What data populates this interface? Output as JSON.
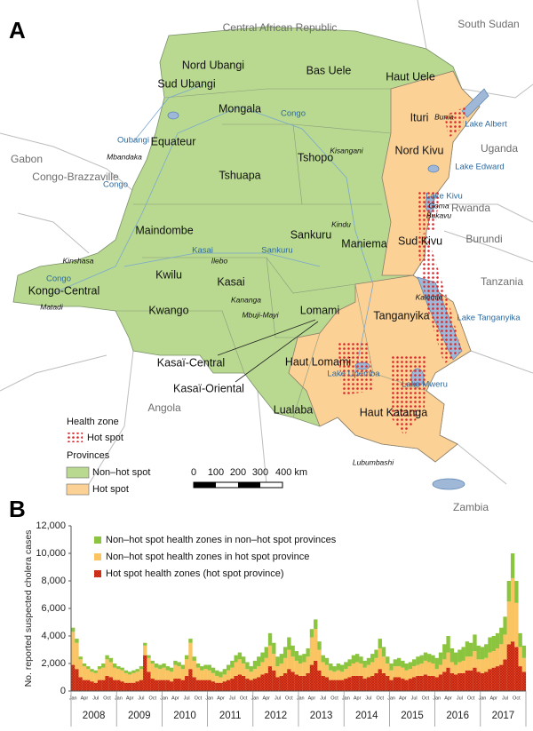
{
  "map": {
    "panel_label": "A",
    "countries": [
      "Central African Republic",
      "South Sudan",
      "Uganda",
      "Gabon",
      "Congo-Brazzaville",
      "Rwanda",
      "Burundi",
      "Tanzania",
      "Angola",
      "Zambia"
    ],
    "provinces": [
      "Nord Ubangi",
      "Bas Uele",
      "Haut Uele",
      "Sud Ubangi",
      "Mongala",
      "Ituri",
      "Equateur",
      "Tshopo",
      "Tshuapa",
      "Nord Kivu",
      "Maindombe",
      "Sankuru",
      "Maniema",
      "Sud Kivu",
      "Kwilu",
      "Kasai",
      "Kongo-Central",
      "Tanganyika",
      "Kwango",
      "Lomami",
      "Kasaï-Central",
      "Haut Lomami",
      "Kasaï-Oriental",
      "Lualaba",
      "Haut Katanga"
    ],
    "cities": [
      "Bunia",
      "Kisangani",
      "Mbandaka",
      "Goma",
      "Bukavu",
      "Kindu",
      "Kinshasa",
      "Ilebo",
      "Kananga",
      "Mbuji-Mayi",
      "Kalemie",
      "Matadi",
      "Lubumbashi"
    ],
    "water": [
      "Lake Albert",
      "Congo",
      "Oubangi",
      "Congo",
      "Lake Edward",
      "Lake Kivu",
      "Kasai",
      "Sankuru",
      "Congo",
      "Lake Tanganyika",
      "Lake Upemba",
      "Lake Mweru"
    ],
    "legend": {
      "health_zone_title": "Health zone",
      "health_zone_hot_spot": "Hot spot",
      "provinces_title": "Provinces",
      "non_hot_spot": "Non–hot spot",
      "hot_spot": "Hot spot"
    },
    "scale_labels": [
      "0",
      "100",
      "200",
      "300",
      "400 km"
    ]
  },
  "chart_data": {
    "type": "stacked_bar",
    "panel_label": "B",
    "y_label": "No. reported suspected cholera cases",
    "ylim": [
      0,
      12000
    ],
    "yticks": [
      0,
      {
        "value": 2000,
        "label": "2,000"
      },
      {
        "value": 4000,
        "label": "4,000"
      },
      {
        "value": 6000,
        "label": "6,000"
      },
      {
        "value": 8000,
        "label": "8,000"
      },
      {
        "value": 10000,
        "label": "10,000"
      },
      {
        "value": 12000,
        "label": "12,000"
      }
    ],
    "years": [
      "2008",
      "2009",
      "2010",
      "2011",
      "2012",
      "2013",
      "2014",
      "2015",
      "2016",
      "2017"
    ],
    "categories": [
      "Jan",
      null,
      null,
      "Apr",
      null,
      null,
      "Jul",
      null,
      null,
      "Oct",
      null,
      null,
      "Jan",
      null,
      null,
      "Apr",
      null,
      null,
      "Jul",
      null,
      null,
      "Oct",
      null,
      null,
      "Jan",
      null,
      null,
      "Apr",
      null,
      null,
      "Jul",
      null,
      null,
      "Oct",
      null,
      null,
      "Jan",
      null,
      null,
      "Apr",
      null,
      null,
      "Jul",
      null,
      null,
      "Oct",
      null,
      null,
      "Jan",
      null,
      null,
      "Apr",
      null,
      null,
      "Jul",
      null,
      null,
      "Oct",
      null,
      null,
      "Jan",
      null,
      null,
      "Apr",
      null,
      null,
      "Jul",
      null,
      null,
      "Oct",
      null,
      null,
      "Jan",
      null,
      null,
      "Apr",
      null,
      null,
      "Jul",
      null,
      null,
      "Oct",
      null,
      null,
      "Jan",
      null,
      null,
      "Apr",
      null,
      null,
      "Jul",
      null,
      null,
      "Oct",
      null,
      null,
      "Jan",
      null,
      null,
      "Apr",
      null,
      null,
      "Jul",
      null,
      null,
      "Oct",
      null,
      null,
      "Jan",
      null,
      null,
      "Apr",
      null,
      null,
      "Jul",
      null,
      null,
      "Oct",
      null,
      null
    ],
    "series": [
      {
        "name": "Hot spot health zones (hot spot province)",
        "color": "#e4421b",
        "hatch": true,
        "values": [
          1900,
          1600,
          1000,
          800,
          800,
          700,
          600,
          800,
          800,
          1100,
          1000,
          800,
          800,
          700,
          600,
          600,
          600,
          700,
          800,
          2600,
          1400,
          900,
          800,
          800,
          800,
          800,
          700,
          900,
          900,
          800,
          1100,
          1600,
          1000,
          800,
          800,
          800,
          800,
          700,
          600,
          600,
          700,
          800,
          900,
          1100,
          1200,
          1100,
          900,
          800,
          900,
          1000,
          1200,
          1300,
          1800,
          1500,
          1000,
          1100,
          1300,
          1600,
          1400,
          1200,
          1100,
          1100,
          1300,
          1900,
          2200,
          1500,
          1100,
          1000,
          800,
          800,
          800,
          800,
          900,
          1000,
          1100,
          1100,
          1100,
          900,
          1000,
          1100,
          1300,
          1600,
          1300,
          1100,
          800,
          1000,
          1000,
          900,
          800,
          900,
          1000,
          1100,
          1100,
          1200,
          1100,
          1100,
          1000,
          1200,
          1400,
          1700,
          1300,
          1200,
          1300,
          1300,
          1500,
          1500,
          1700,
          1400,
          1300,
          1400,
          1600,
          1700,
          1800,
          1900,
          2300,
          3400,
          3600,
          3200,
          1800,
          1400
        ]
      },
      {
        "name": "Non–hot spot health zones in hot spot province",
        "color": "#fbc462",
        "values": [
          2400,
          1900,
          1300,
          1000,
          800,
          700,
          700,
          800,
          900,
          1200,
          1100,
          900,
          800,
          800,
          700,
          600,
          700,
          700,
          800,
          700,
          1000,
          1100,
          900,
          800,
          900,
          700,
          700,
          1000,
          900,
          800,
          1200,
          1900,
          1200,
          900,
          700,
          800,
          700,
          600,
          500,
          400,
          500,
          700,
          800,
          1000,
          1100,
          900,
          700,
          600,
          700,
          800,
          900,
          1100,
          1500,
          1200,
          800,
          900,
          1100,
          1400,
          1100,
          1000,
          900,
          1000,
          1200,
          2000,
          2300,
          1500,
          1000,
          900,
          700,
          600,
          700,
          600,
          700,
          800,
          900,
          1000,
          900,
          800,
          900,
          1000,
          1100,
          1500,
          1200,
          900,
          700,
          800,
          800,
          800,
          700,
          700,
          800,
          800,
          900,
          1000,
          1000,
          900,
          600,
          700,
          900,
          1100,
          800,
          700,
          800,
          900,
          1000,
          1000,
          1200,
          900,
          1000,
          1000,
          1200,
          1200,
          1300,
          1500,
          1800,
          3100,
          4600,
          3200,
          1400,
          1000
        ]
      },
      {
        "name": "Non–hot spot health zones in non–hot spot provinces",
        "color": "#8bc43e",
        "values": [
          300,
          300,
          200,
          200,
          200,
          200,
          200,
          200,
          300,
          300,
          300,
          300,
          200,
          200,
          200,
          200,
          200,
          200,
          200,
          200,
          200,
          200,
          300,
          300,
          300,
          300,
          300,
          300,
          300,
          300,
          300,
          300,
          300,
          300,
          300,
          300,
          400,
          400,
          400,
          400,
          400,
          400,
          500,
          500,
          500,
          500,
          500,
          400,
          600,
          700,
          700,
          800,
          900,
          800,
          700,
          700,
          800,
          900,
          800,
          700,
          600,
          600,
          600,
          600,
          700,
          600,
          500,
          500,
          500,
          400,
          500,
          500,
          500,
          500,
          600,
          600,
          500,
          500,
          500,
          600,
          600,
          700,
          700,
          500,
          500,
          500,
          600,
          500,
          500,
          500,
          500,
          600,
          600,
          600,
          600,
          600,
          800,
          900,
          1100,
          1200,
          1000,
          900,
          900,
          1000,
          1100,
          1000,
          1200,
          1000,
          900,
          1000,
          1100,
          1100,
          1100,
          1200,
          1300,
          1500,
          1800,
          1600,
          1000,
          900
        ]
      }
    ]
  }
}
